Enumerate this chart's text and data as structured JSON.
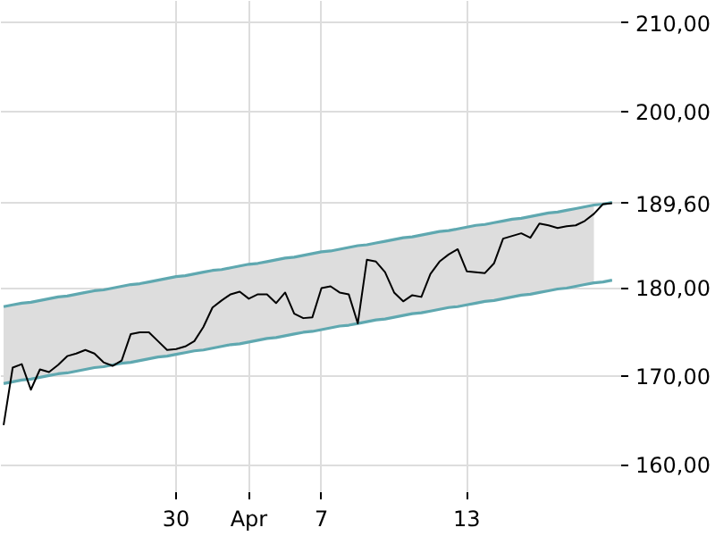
{
  "chart_data": {
    "type": "line",
    "categories": [
      null,
      null,
      null,
      null,
      null,
      null,
      null,
      null,
      null,
      null,
      null,
      null,
      null,
      null,
      null,
      null,
      null,
      null,
      null,
      "30",
      null,
      null,
      null,
      null,
      null,
      null,
      null,
      "Apr",
      null,
      null,
      null,
      null,
      null,
      null,
      null,
      "7",
      null,
      null,
      null,
      null,
      null,
      null,
      null,
      null,
      null,
      null,
      null,
      null,
      null,
      null,
      null,
      "13",
      null,
      null,
      null,
      null,
      null,
      null,
      null,
      null,
      null,
      null,
      null,
      null,
      null,
      null,
      null,
      null
    ],
    "ylim": [
      156.9,
      212.5
    ],
    "yticks": [
      {
        "value": 160,
        "label": "160,00"
      },
      {
        "value": 170,
        "label": "170,00"
      },
      {
        "value": 180,
        "label": "180,00"
      },
      {
        "value": 189.6,
        "label": "189,60"
      },
      {
        "value": 200,
        "label": "200,00"
      },
      {
        "value": 210,
        "label": "210,00"
      }
    ],
    "grid": true,
    "marker": "none",
    "line_style": "solid",
    "series": [
      {
        "type": "line",
        "color": "#5fa8b0",
        "values": [
          177.9,
          178.1,
          178.3,
          178.4,
          178.6,
          178.8,
          179.0,
          179.1,
          179.3,
          179.5,
          179.7,
          179.8,
          180.0,
          180.2,
          180.4,
          180.5,
          180.7,
          180.9,
          181.1,
          181.3,
          181.4,
          181.6,
          181.8,
          182.0,
          182.1,
          182.3,
          182.5,
          182.7,
          182.8,
          183.0,
          183.2,
          183.4,
          183.5,
          183.7,
          183.9,
          184.1,
          184.2,
          184.4,
          184.6,
          184.8,
          184.9,
          185.1,
          185.3,
          185.5,
          185.7,
          185.8,
          186.0,
          186.2,
          186.4,
          186.5,
          186.7,
          186.9,
          187.1,
          187.2,
          187.4,
          187.6,
          187.8,
          187.9,
          188.1,
          188.3,
          188.5,
          188.6,
          188.8,
          189.0,
          189.2,
          189.4,
          189.5,
          189.7
        ]
      },
      {
        "type": "line",
        "color": "#5fa8b0",
        "values": [
          169.2,
          169.4,
          169.6,
          169.7,
          169.9,
          170.1,
          170.3,
          170.4,
          170.6,
          170.8,
          171.0,
          171.1,
          171.3,
          171.5,
          171.6,
          171.8,
          172.0,
          172.2,
          172.3,
          172.5,
          172.7,
          172.9,
          173.0,
          173.2,
          173.4,
          173.6,
          173.7,
          173.9,
          174.1,
          174.3,
          174.4,
          174.6,
          174.8,
          175.0,
          175.1,
          175.3,
          175.5,
          175.7,
          175.8,
          176.0,
          176.2,
          176.4,
          176.5,
          176.7,
          176.9,
          177.1,
          177.2,
          177.4,
          177.6,
          177.8,
          177.9,
          178.1,
          178.3,
          178.5,
          178.6,
          178.8,
          179.0,
          179.2,
          179.3,
          179.5,
          179.7,
          179.9,
          180.0,
          180.2,
          180.4,
          180.6,
          180.7,
          180.9
        ]
      },
      {
        "color": "#000000",
        "values": [
          164.5,
          171.0,
          171.4,
          168.5,
          170.8,
          170.5,
          171.3,
          172.3,
          172.6,
          173.0,
          172.6,
          171.6,
          171.2,
          171.8,
          174.8,
          175.0,
          175.0,
          174.0,
          173.0,
          173.1,
          173.4,
          174.0,
          175.6,
          177.8,
          178.6,
          179.3,
          179.6,
          178.8,
          179.3,
          179.3,
          178.3,
          179.5,
          177.1,
          176.6,
          176.7,
          180.0,
          180.2,
          179.5,
          179.3,
          176.0,
          183.2,
          183.0,
          181.8,
          179.5,
          178.5,
          179.2,
          179.0,
          181.6,
          183.0,
          183.8,
          184.4,
          181.9,
          181.8,
          181.7,
          182.8,
          185.6,
          185.9,
          186.2,
          185.7,
          187.3,
          187.1,
          186.8,
          187.0,
          187.1,
          187.6,
          188.4,
          189.5,
          189.6
        ],
        "lower": [
          169.2,
          169.4,
          169.6,
          169.7,
          169.9,
          170.1,
          170.3,
          170.4,
          170.6,
          170.8,
          171.0,
          171.1,
          171.3,
          171.5,
          171.6,
          171.8,
          172.0,
          172.2,
          172.3,
          172.5,
          172.7,
          172.9,
          173.0,
          173.2,
          173.4,
          173.6,
          173.7,
          173.9,
          174.1,
          174.3,
          174.4,
          174.6,
          174.8,
          175.0,
          175.1,
          175.3,
          175.5,
          175.7,
          175.8,
          176.0,
          176.2,
          176.4,
          176.5,
          176.7,
          176.9,
          177.1,
          177.2,
          177.4,
          177.6,
          177.8,
          177.9,
          178.1,
          178.3,
          178.5,
          178.6,
          178.8,
          179.0,
          179.2,
          179.3,
          179.5,
          179.7,
          179.9,
          180.0,
          180.2,
          180.4,
          180.6,
          null,
          null
        ],
        "upper": [
          177.9,
          178.1,
          178.3,
          178.4,
          178.6,
          178.8,
          179.0,
          179.1,
          179.3,
          179.5,
          179.7,
          179.8,
          180.0,
          180.2,
          180.4,
          180.5,
          180.7,
          180.9,
          181.1,
          181.3,
          181.4,
          181.6,
          181.8,
          182.0,
          182.1,
          182.3,
          182.5,
          182.7,
          182.8,
          183.0,
          183.2,
          183.4,
          183.5,
          183.7,
          183.9,
          184.1,
          184.2,
          184.4,
          184.6,
          184.8,
          184.9,
          185.1,
          185.3,
          185.5,
          185.7,
          185.8,
          186.0,
          186.2,
          186.4,
          186.5,
          186.7,
          186.9,
          187.1,
          187.2,
          187.4,
          187.6,
          187.8,
          187.9,
          188.1,
          188.3,
          188.5,
          188.6,
          188.8,
          189.0,
          189.2,
          189.4,
          null,
          null
        ]
      }
    ]
  }
}
